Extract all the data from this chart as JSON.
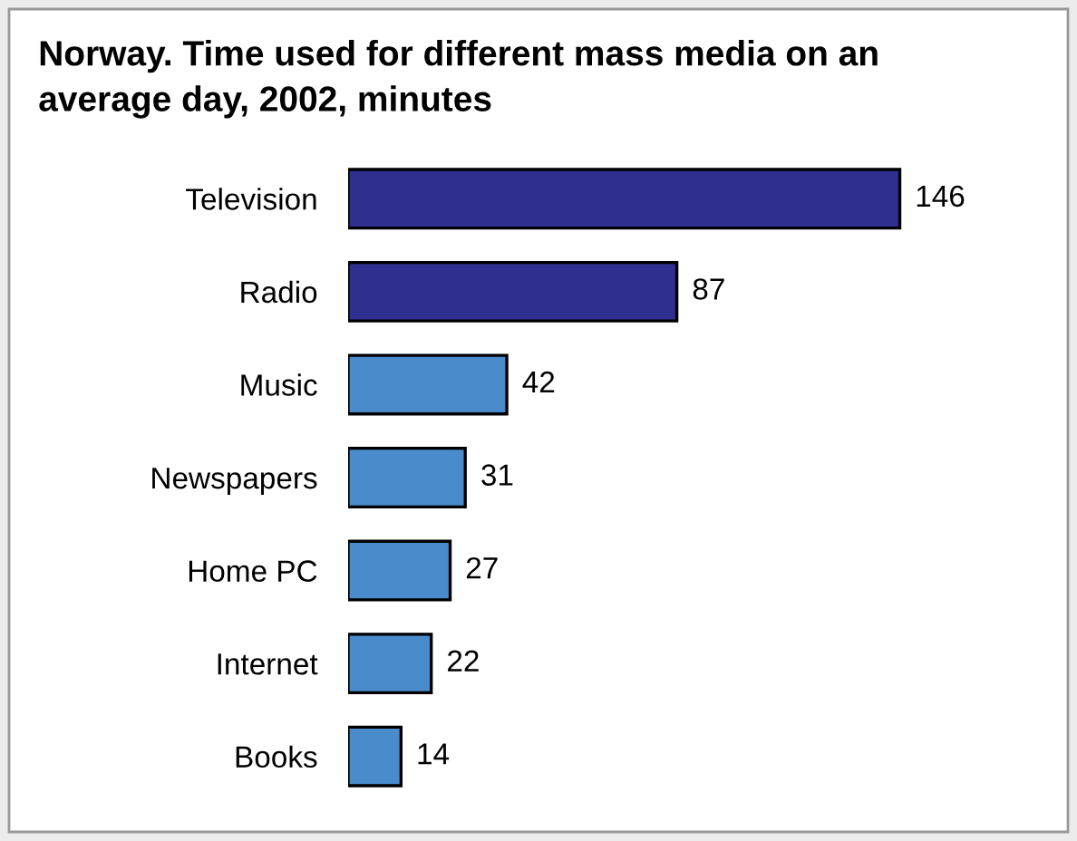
{
  "chart_data": {
    "type": "bar",
    "orientation": "horizontal",
    "title": "Norway. Time used for different mass media on an average day, 2002, minutes",
    "categories": [
      "Television",
      "Radio",
      "Music",
      "Newspapers",
      "Home PC",
      "Internet",
      "Books"
    ],
    "values": [
      146,
      87,
      42,
      31,
      27,
      22,
      14
    ],
    "colors": [
      "#2e2f8f",
      "#2e2f8f",
      "#4a8bcb",
      "#4a8bcb",
      "#4a8bcb",
      "#4a8bcb",
      "#4a8bcb"
    ],
    "data_labels": true,
    "grid": false,
    "legend": false
  }
}
